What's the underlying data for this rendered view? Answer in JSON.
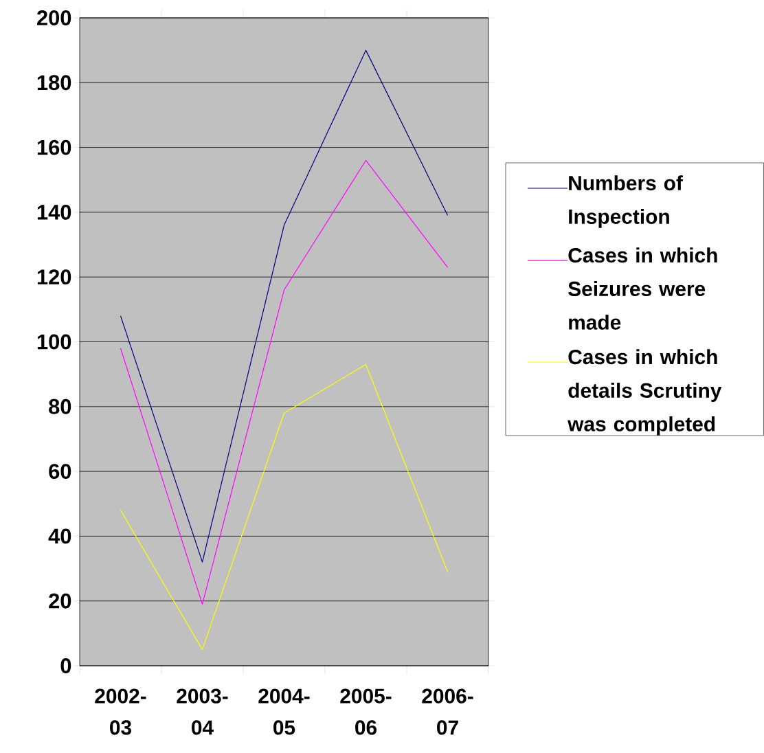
{
  "chart_data": {
    "type": "line",
    "categories": [
      "2002-03",
      "2003-04",
      "2004-05",
      "2005-06",
      "2006-07"
    ],
    "series": [
      {
        "name": "Numbers of Inspection",
        "color": "#000080",
        "values": [
          108,
          32,
          136,
          190,
          139
        ]
      },
      {
        "name": "Cases in which Seizures were made",
        "color": "#ff00ff",
        "values": [
          98,
          19,
          116,
          156,
          123
        ]
      },
      {
        "name": "Cases in which details Scrutiny was completed",
        "color": "#ffff00",
        "values": [
          48,
          5,
          78,
          93,
          29
        ]
      }
    ],
    "ylim": [
      0,
      200
    ],
    "yticks": [
      0,
      20,
      40,
      60,
      80,
      100,
      120,
      140,
      160,
      180,
      200
    ],
    "grid": "y",
    "legend": "right",
    "marker": "none",
    "line_style": "solid"
  }
}
